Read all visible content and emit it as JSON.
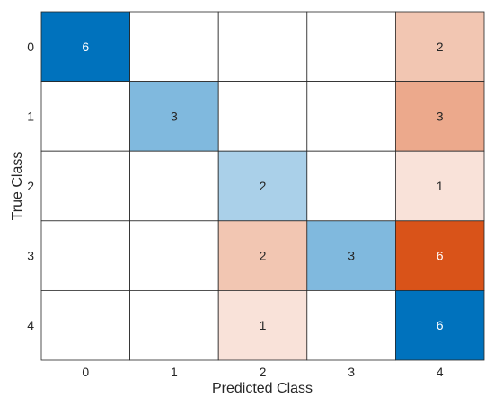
{
  "chart_data": {
    "type": "heatmap",
    "title": "",
    "xlabel": "Predicted Class",
    "ylabel": "True Class",
    "x_categories": [
      "0",
      "1",
      "2",
      "3",
      "4"
    ],
    "y_categories": [
      "0",
      "1",
      "2",
      "3",
      "4"
    ],
    "matrix": [
      [
        6,
        0,
        0,
        0,
        2
      ],
      [
        0,
        3,
        0,
        0,
        3
      ],
      [
        0,
        0,
        2,
        0,
        1
      ],
      [
        0,
        0,
        2,
        3,
        6
      ],
      [
        0,
        0,
        1,
        0,
        6
      ]
    ],
    "colors": {
      "correct_max": "#0072BD",
      "correct_min": "#FFFFFF",
      "incorrect_max": "#D95319",
      "incorrect_min": "#FFFFFF",
      "grid": "#262626",
      "text_dark": "#262626",
      "text_light": "#FFFFFF"
    }
  }
}
